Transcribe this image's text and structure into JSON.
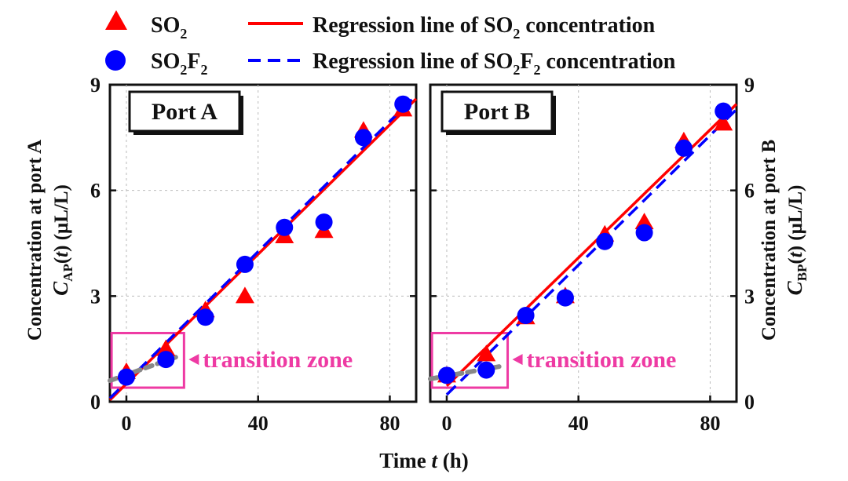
{
  "legend": {
    "so2": {
      "base": "SO",
      "sub": "2"
    },
    "so2f2": {
      "base": "SO",
      "sub1": "2",
      "mid": "F",
      "sub2": "2"
    },
    "reg_so2": {
      "pre": "Regression line of SO",
      "sub": "2",
      "post": " concentration"
    },
    "reg_so2f2": {
      "pre": "Regression line of SO",
      "sub1": "2",
      "mid": "F",
      "sub2": "2",
      "post": " concentration"
    }
  },
  "left_axis": {
    "line1": "Concentration at  port A",
    "sym": "C",
    "sub": "AP",
    "mid": "(",
    "t": "t",
    "post": ") (μL/L)"
  },
  "right_axis": {
    "line1": "Concentration at port B",
    "sym": "C",
    "sub": "BP",
    "mid": "(",
    "t": "t",
    "post": ") (μL/L)"
  },
  "x_axis": {
    "pre": "Time ",
    "t": "t",
    "post": " (h)"
  },
  "transition_label": "transition zone",
  "colors": {
    "so2": "#ff0000",
    "so2f2": "#0000ff",
    "zone": "#ee3aa3",
    "transition_line": "#888888"
  },
  "chart_data": [
    {
      "type": "scatter",
      "panel": "Port A",
      "title": "Port A",
      "xlim": [
        -5,
        88
      ],
      "ylim": [
        0,
        9
      ],
      "xticks": [
        0,
        40,
        80
      ],
      "yticks": [
        0,
        3,
        6,
        9
      ],
      "series": [
        {
          "name": "SO2",
          "marker": "triangle",
          "x": [
            0,
            12,
            24,
            36,
            48,
            60,
            72,
            84
          ],
          "y": [
            0.85,
            1.5,
            2.6,
            3.0,
            4.7,
            4.85,
            7.7,
            8.3
          ]
        },
        {
          "name": "SO2F2",
          "marker": "circle",
          "x": [
            0,
            12,
            24,
            36,
            48,
            60,
            72,
            84
          ],
          "y": [
            0.7,
            1.2,
            2.4,
            3.9,
            4.95,
            5.1,
            7.5,
            8.45
          ]
        }
      ],
      "regression": [
        {
          "name": "Regression line of SO2 concentration",
          "style": "solid",
          "x": [
            -5,
            88
          ],
          "y": [
            0.05,
            8.6
          ]
        },
        {
          "name": "Regression line of SO2F2 concentration",
          "style": "dashed",
          "x": [
            -5,
            88
          ],
          "y": [
            0.1,
            8.7
          ]
        }
      ],
      "transition": {
        "x": [
          -5,
          16
        ],
        "y": [
          0.6,
          1.3
        ]
      },
      "transition_box": {
        "x": [
          -4.5,
          17.5
        ],
        "y": [
          0.4,
          1.95
        ]
      }
    },
    {
      "type": "scatter",
      "panel": "Port B",
      "title": "Port B",
      "xlim": [
        -5,
        88
      ],
      "ylim": [
        0,
        9
      ],
      "xticks": [
        0,
        40,
        80
      ],
      "yticks": [
        0,
        3,
        6,
        9
      ],
      "series": [
        {
          "name": "SO2",
          "marker": "triangle",
          "x": [
            0,
            12,
            24,
            36,
            48,
            60,
            72,
            84
          ],
          "y": [
            0.75,
            1.35,
            2.4,
            3.0,
            4.75,
            5.1,
            7.4,
            7.9
          ]
        },
        {
          "name": "SO2F2",
          "marker": "circle",
          "x": [
            0,
            12,
            24,
            36,
            48,
            60,
            72,
            84
          ],
          "y": [
            0.75,
            0.9,
            2.45,
            2.95,
            4.55,
            4.8,
            7.2,
            8.25
          ]
        },
        {
          "name": "",
          "marker": "circle",
          "x": [],
          "y": []
        }
      ],
      "regression": [
        {
          "name": "Regression line of SO2 concentration",
          "style": "solid",
          "x": [
            0,
            88
          ],
          "y": [
            0.45,
            8.45
          ]
        },
        {
          "name": "Regression line of SO2F2 concentration",
          "style": "dashed",
          "x": [
            0,
            88
          ],
          "y": [
            0.2,
            8.3
          ]
        }
      ],
      "transition": {
        "x": [
          -5,
          16
        ],
        "y": [
          0.65,
          1.0
        ]
      },
      "transition_box": {
        "x": [
          -4.5,
          18.5
        ],
        "y": [
          0.4,
          1.95
        ]
      }
    }
  ]
}
